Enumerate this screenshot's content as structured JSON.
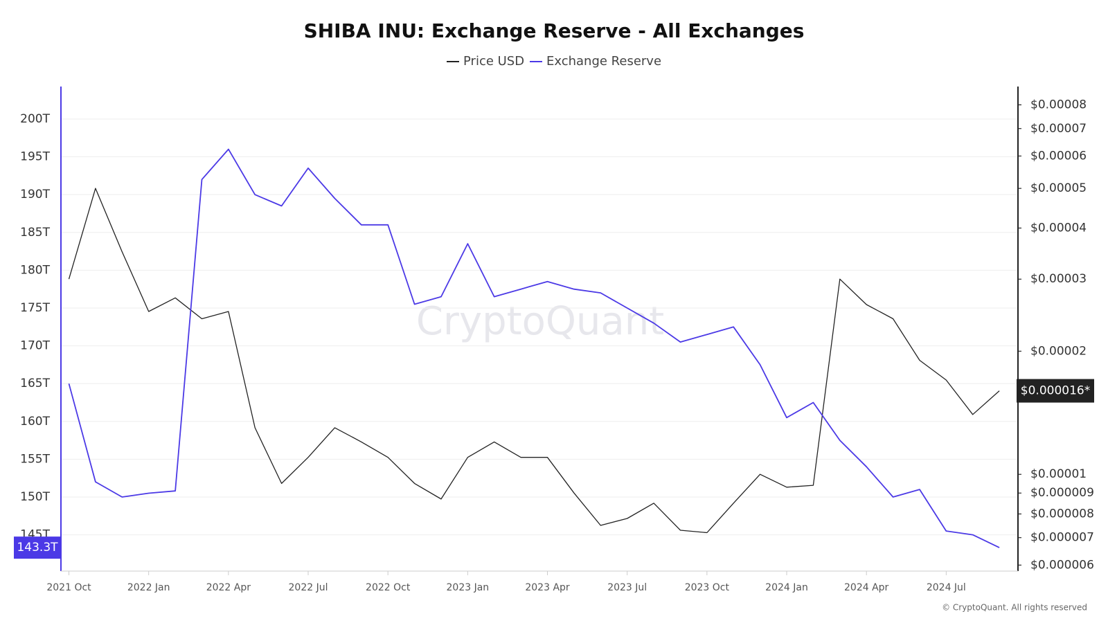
{
  "chart_data": {
    "type": "line",
    "title": "SHIBA INU: Exchange Reserve - All Exchanges",
    "watermark": "CryptoQuant",
    "credit": "© CryptoQuant. All rights reserved",
    "x": [
      "2021-10",
      "2021-11",
      "2021-12",
      "2022-01",
      "2022-02",
      "2022-03",
      "2022-04",
      "2022-05",
      "2022-06",
      "2022-07",
      "2022-08",
      "2022-09",
      "2022-10",
      "2022-11",
      "2022-12",
      "2023-01",
      "2023-02",
      "2023-03",
      "2023-04",
      "2023-05",
      "2023-06",
      "2023-07",
      "2023-08",
      "2023-09",
      "2023-10",
      "2023-11",
      "2023-12",
      "2024-01",
      "2024-02",
      "2024-03",
      "2024-04",
      "2024-05",
      "2024-06",
      "2024-07",
      "2024-08",
      "2024-09"
    ],
    "xlim": [
      "2021-10",
      "2024-09"
    ],
    "xticks": [
      {
        "value": "2021-10",
        "label": "2021 Oct"
      },
      {
        "value": "2022-01",
        "label": "2022 Jan"
      },
      {
        "value": "2022-04",
        "label": "2022 Apr"
      },
      {
        "value": "2022-07",
        "label": "2022 Jul"
      },
      {
        "value": "2022-10",
        "label": "2022 Oct"
      },
      {
        "value": "2023-01",
        "label": "2023 Jan"
      },
      {
        "value": "2023-04",
        "label": "2023 Apr"
      },
      {
        "value": "2023-07",
        "label": "2023 Jul"
      },
      {
        "value": "2023-10",
        "label": "2023 Oct"
      },
      {
        "value": "2024-01",
        "label": "2024 Jan"
      },
      {
        "value": "2024-04",
        "label": "2024 Apr"
      },
      {
        "value": "2024-07",
        "label": "2024 Jul"
      }
    ],
    "series": [
      {
        "name": "Price USD",
        "color": "#222222",
        "axis": "y2",
        "values": [
          3e-05,
          5e-05,
          3.5e-05,
          2.5e-05,
          2.7e-05,
          2.4e-05,
          2.5e-05,
          1.3e-05,
          9.5e-06,
          1.1e-05,
          1.3e-05,
          1.2e-05,
          1.1e-05,
          9.5e-06,
          8.7e-06,
          1.1e-05,
          1.2e-05,
          1.1e-05,
          1.1e-05,
          9e-06,
          7.5e-06,
          7.8e-06,
          8.5e-06,
          7.3e-06,
          7.2e-06,
          8.5e-06,
          1e-05,
          9.3e-06,
          9.4e-06,
          3e-05,
          2.6e-05,
          2.4e-05,
          1.9e-05,
          1.7e-05,
          1.4e-05,
          1.6e-05
        ],
        "value_labels": [
          null,
          null,
          null,
          null,
          null,
          null,
          null,
          null,
          null,
          null,
          null,
          null,
          null,
          null,
          null,
          null,
          null,
          null,
          null,
          null,
          null,
          null,
          null,
          null,
          null,
          null,
          null,
          null,
          null,
          null,
          null,
          null,
          null,
          null,
          null,
          "$0.000016*"
        ]
      },
      {
        "name": "Exchange Reserve",
        "color": "#4b39e6",
        "axis": "y",
        "values": [
          165,
          152,
          150,
          150.5,
          150.8,
          192,
          196,
          190,
          188.5,
          193.5,
          189.5,
          186,
          186,
          175.5,
          176.5,
          183.5,
          176.5,
          177.5,
          178.5,
          177.5,
          177,
          175,
          173,
          170.5,
          171.5,
          172.5,
          167.5,
          160.5,
          162.5,
          157.5,
          154,
          150,
          151,
          145.5,
          145,
          143.3
        ],
        "value_labels": [
          null,
          null,
          null,
          null,
          null,
          null,
          null,
          null,
          null,
          null,
          null,
          null,
          null,
          null,
          null,
          null,
          null,
          null,
          null,
          null,
          null,
          null,
          null,
          null,
          null,
          null,
          null,
          null,
          null,
          null,
          null,
          null,
          null,
          null,
          null,
          "143.3T"
        ]
      }
    ],
    "ylim": [
      140.2,
      204.3
    ],
    "yticks": [
      {
        "value": 145,
        "label": "145T"
      },
      {
        "value": 150,
        "label": "150T"
      },
      {
        "value": 155,
        "label": "155T"
      },
      {
        "value": 160,
        "label": "160T"
      },
      {
        "value": 165,
        "label": "165T"
      },
      {
        "value": 170,
        "label": "170T"
      },
      {
        "value": 175,
        "label": "175T"
      },
      {
        "value": 180,
        "label": "180T"
      },
      {
        "value": 185,
        "label": "185T"
      },
      {
        "value": 190,
        "label": "190T"
      },
      {
        "value": 195,
        "label": "195T"
      },
      {
        "value": 200,
        "label": "200T"
      }
    ],
    "y2lim": [
      5.8e-06,
      8.87e-05
    ],
    "y2scale": "log",
    "y2ticks": [
      {
        "value": 6e-06,
        "label": "$0.000006"
      },
      {
        "value": 7e-06,
        "label": "$0.000007"
      },
      {
        "value": 8e-06,
        "label": "$0.000008"
      },
      {
        "value": 9e-06,
        "label": "$0.000009"
      },
      {
        "value": 1e-05,
        "label": "$0.00001"
      },
      {
        "value": 2e-05,
        "label": "$0.00002"
      },
      {
        "value": 3e-05,
        "label": "$0.00003"
      },
      {
        "value": 4e-05,
        "label": "$0.00004"
      },
      {
        "value": 5e-05,
        "label": "$0.00005"
      },
      {
        "value": 6e-05,
        "label": "$0.00006"
      },
      {
        "value": 7e-05,
        "label": "$0.00007"
      },
      {
        "value": 8e-05,
        "label": "$0.00008"
      }
    ],
    "grid": true
  }
}
